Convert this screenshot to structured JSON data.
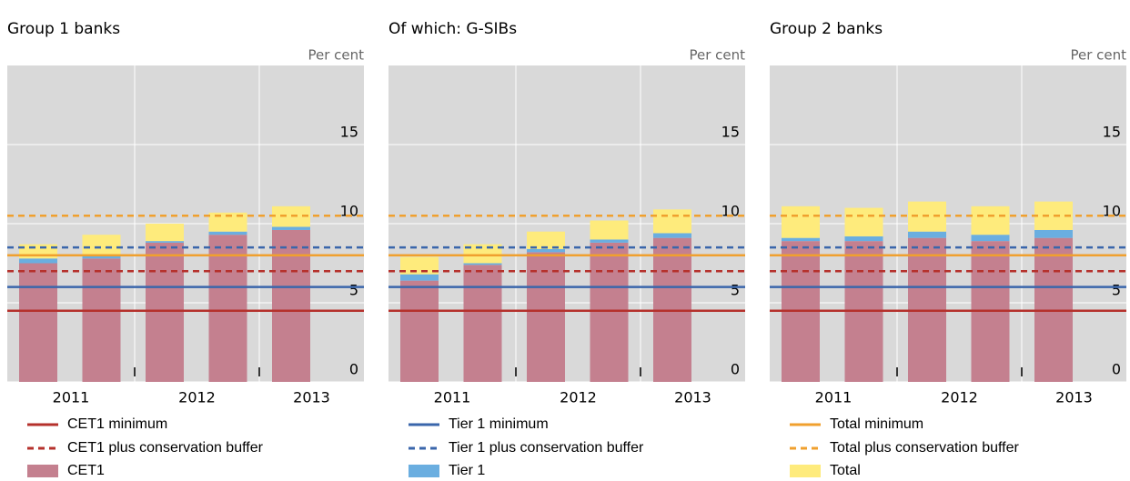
{
  "measures": [
    {
      "name": "CET1",
      "color": "#c4808f",
      "minimum": {
        "name": "CET1 minimum",
        "value": 4.5,
        "color": "#b5312c"
      },
      "buffer": {
        "name": "CET1 plus conservation buffer",
        "value": 7,
        "color": "#b5312c"
      }
    },
    {
      "name": "Tier 1",
      "color": "#6aaee0",
      "minimum": {
        "name": "Tier 1 minimum",
        "value": 6,
        "color": "#3a66ab"
      },
      "buffer": {
        "name": "Tier 1 plus conservation buffer",
        "value": 8.5,
        "color": "#3a66ab"
      }
    },
    {
      "name": "Total",
      "color": "#feeb7c",
      "minimum": {
        "name": "Total minimum",
        "value": 8,
        "color": "#f0a02e"
      },
      "buffer": {
        "name": "Total plus conservation buffer",
        "value": 10.5,
        "color": "#f0a02e"
      }
    }
  ],
  "chart_data": [
    {
      "type": "bar",
      "title": "Group 1 banks",
      "ylabel": "Per cent",
      "x_labels": [
        "2011",
        "2012",
        "2013"
      ],
      "ylim": [
        0,
        20
      ],
      "yticks": [
        0,
        5,
        10,
        15
      ],
      "grid": true,
      "series": [
        {
          "values": [
            7.5,
            7.8,
            8.8,
            9.3,
            9.6
          ]
        },
        {
          "values": [
            0.3,
            0.2,
            0.1,
            0.2,
            0.2
          ]
        },
        {
          "values": [
            0.9,
            1.3,
            1.1,
            1.2,
            1.3
          ]
        }
      ]
    },
    {
      "type": "bar",
      "title": "Of which: G-SIBs",
      "ylabel": "Per cent",
      "x_labels": [
        "2011",
        "2012",
        "2013"
      ],
      "ylim": [
        0,
        20
      ],
      "yticks": [
        0,
        5,
        10,
        15
      ],
      "grid": true,
      "series": [
        {
          "values": [
            6.4,
            7.4,
            8.2,
            8.8,
            9.1
          ]
        },
        {
          "values": [
            0.4,
            0.1,
            0.2,
            0.2,
            0.3
          ]
        },
        {
          "values": [
            1.1,
            1.2,
            1.1,
            1.2,
            1.5
          ]
        }
      ]
    },
    {
      "type": "bar",
      "title": "Group 2 banks",
      "ylabel": "Per cent",
      "x_labels": [
        "2011",
        "2012",
        "2013"
      ],
      "ylim": [
        0,
        20
      ],
      "yticks": [
        0,
        5,
        10,
        15
      ],
      "grid": true,
      "series": [
        {
          "values": [
            8.9,
            8.9,
            9.1,
            8.9,
            9.1
          ]
        },
        {
          "values": [
            0.2,
            0.3,
            0.4,
            0.4,
            0.5
          ]
        },
        {
          "values": [
            2.0,
            1.8,
            1.9,
            1.8,
            1.8
          ]
        }
      ]
    }
  ]
}
